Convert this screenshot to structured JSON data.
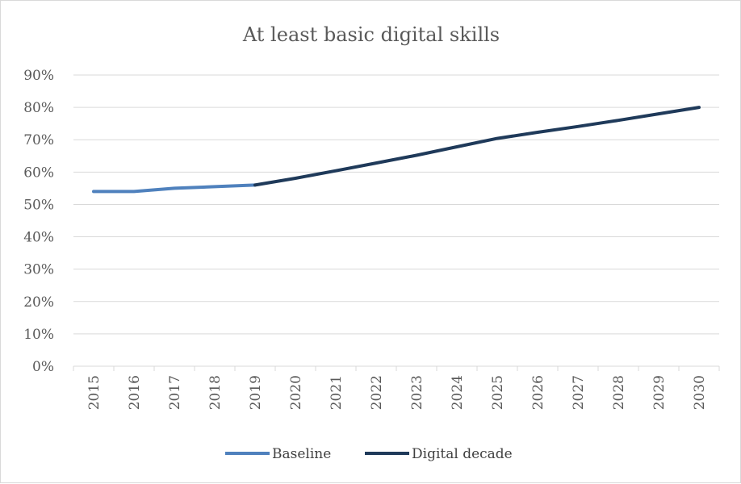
{
  "chart_data": {
    "type": "line",
    "title": "At least basic digital skills",
    "xlabel": "",
    "ylabel": "",
    "categories": [
      "2015",
      "2016",
      "2017",
      "2018",
      "2019",
      "2020",
      "2021",
      "2022",
      "2023",
      "2024",
      "2025",
      "2026",
      "2027",
      "2028",
      "2029",
      "2030"
    ],
    "y_tick_labels": [
      "0%",
      "10%",
      "20%",
      "30%",
      "40%",
      "50%",
      "60%",
      "70%",
      "80%",
      "90%"
    ],
    "ylim": [
      0,
      90
    ],
    "grid": true,
    "legend_position": "bottom",
    "series": [
      {
        "name": "Baseline",
        "color": "#4f81bd",
        "values": [
          54,
          54,
          55,
          55.5,
          56,
          null,
          null,
          null,
          null,
          null,
          null,
          null,
          null,
          null,
          null,
          null
        ]
      },
      {
        "name": "Digital decade",
        "color": "#1f3a5a",
        "values": [
          null,
          null,
          null,
          null,
          56,
          58.1,
          60.4,
          62.8,
          65.2,
          67.8,
          70.4,
          72.3,
          74.1,
          76,
          78,
          80
        ]
      }
    ]
  }
}
